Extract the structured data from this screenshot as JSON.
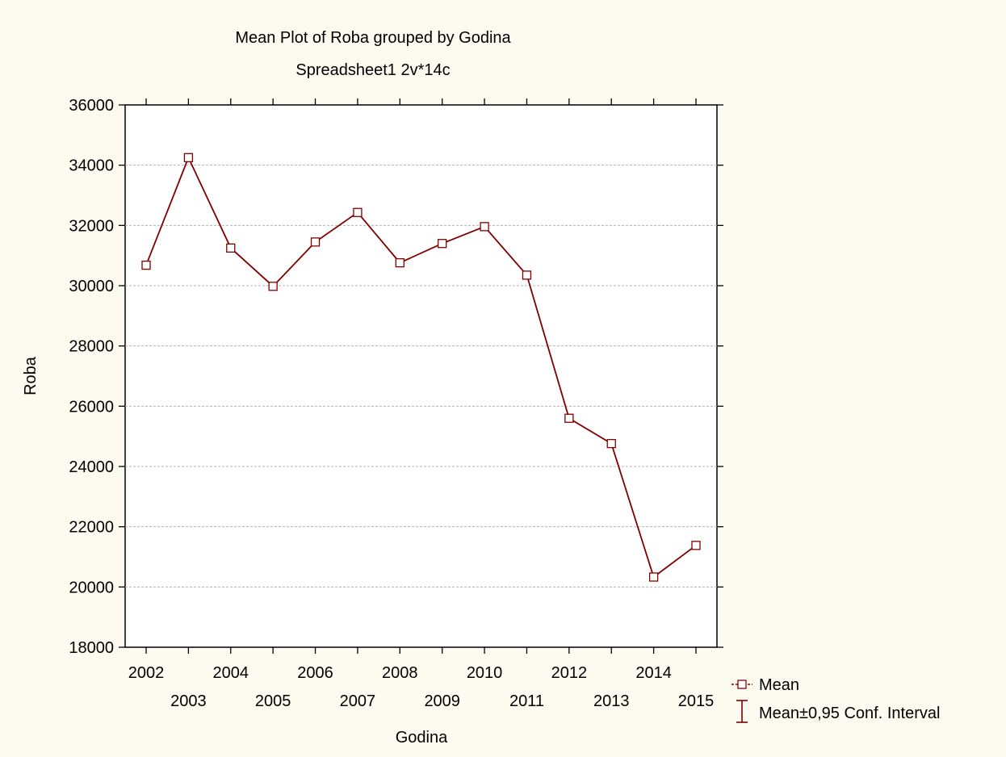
{
  "chart_data": {
    "type": "line",
    "title": "Mean Plot of Roba grouped by  Godina",
    "subtitle": "Spreadsheet1 2v*14c",
    "xlabel": "Godina",
    "ylabel": "Roba",
    "ylim": [
      18000,
      36000
    ],
    "yticks": [
      "18000",
      "20000",
      "22000",
      "24000",
      "26000",
      "28000",
      "30000",
      "32000",
      "34000",
      "36000"
    ],
    "grid": true,
    "legend_position": "bottom-right",
    "x": [
      "2002",
      "2003",
      "2004",
      "2005",
      "2006",
      "2007",
      "2008",
      "2009",
      "2010",
      "2011",
      "2012",
      "2013",
      "2014",
      "2015"
    ],
    "series": [
      {
        "name": "Mean",
        "values": [
          30680,
          34250,
          31250,
          29980,
          31450,
          32430,
          30760,
          31400,
          31960,
          30350,
          25600,
          24760,
          20330,
          21380
        ]
      }
    ],
    "legend": {
      "mean_label": "Mean",
      "ci_label": "Mean±0,95 Conf. Interval"
    },
    "colors": {
      "series": "#800000",
      "background": "#fdfaf0",
      "plot_background": "#ffffff",
      "grid": "#b4b4b4"
    }
  }
}
